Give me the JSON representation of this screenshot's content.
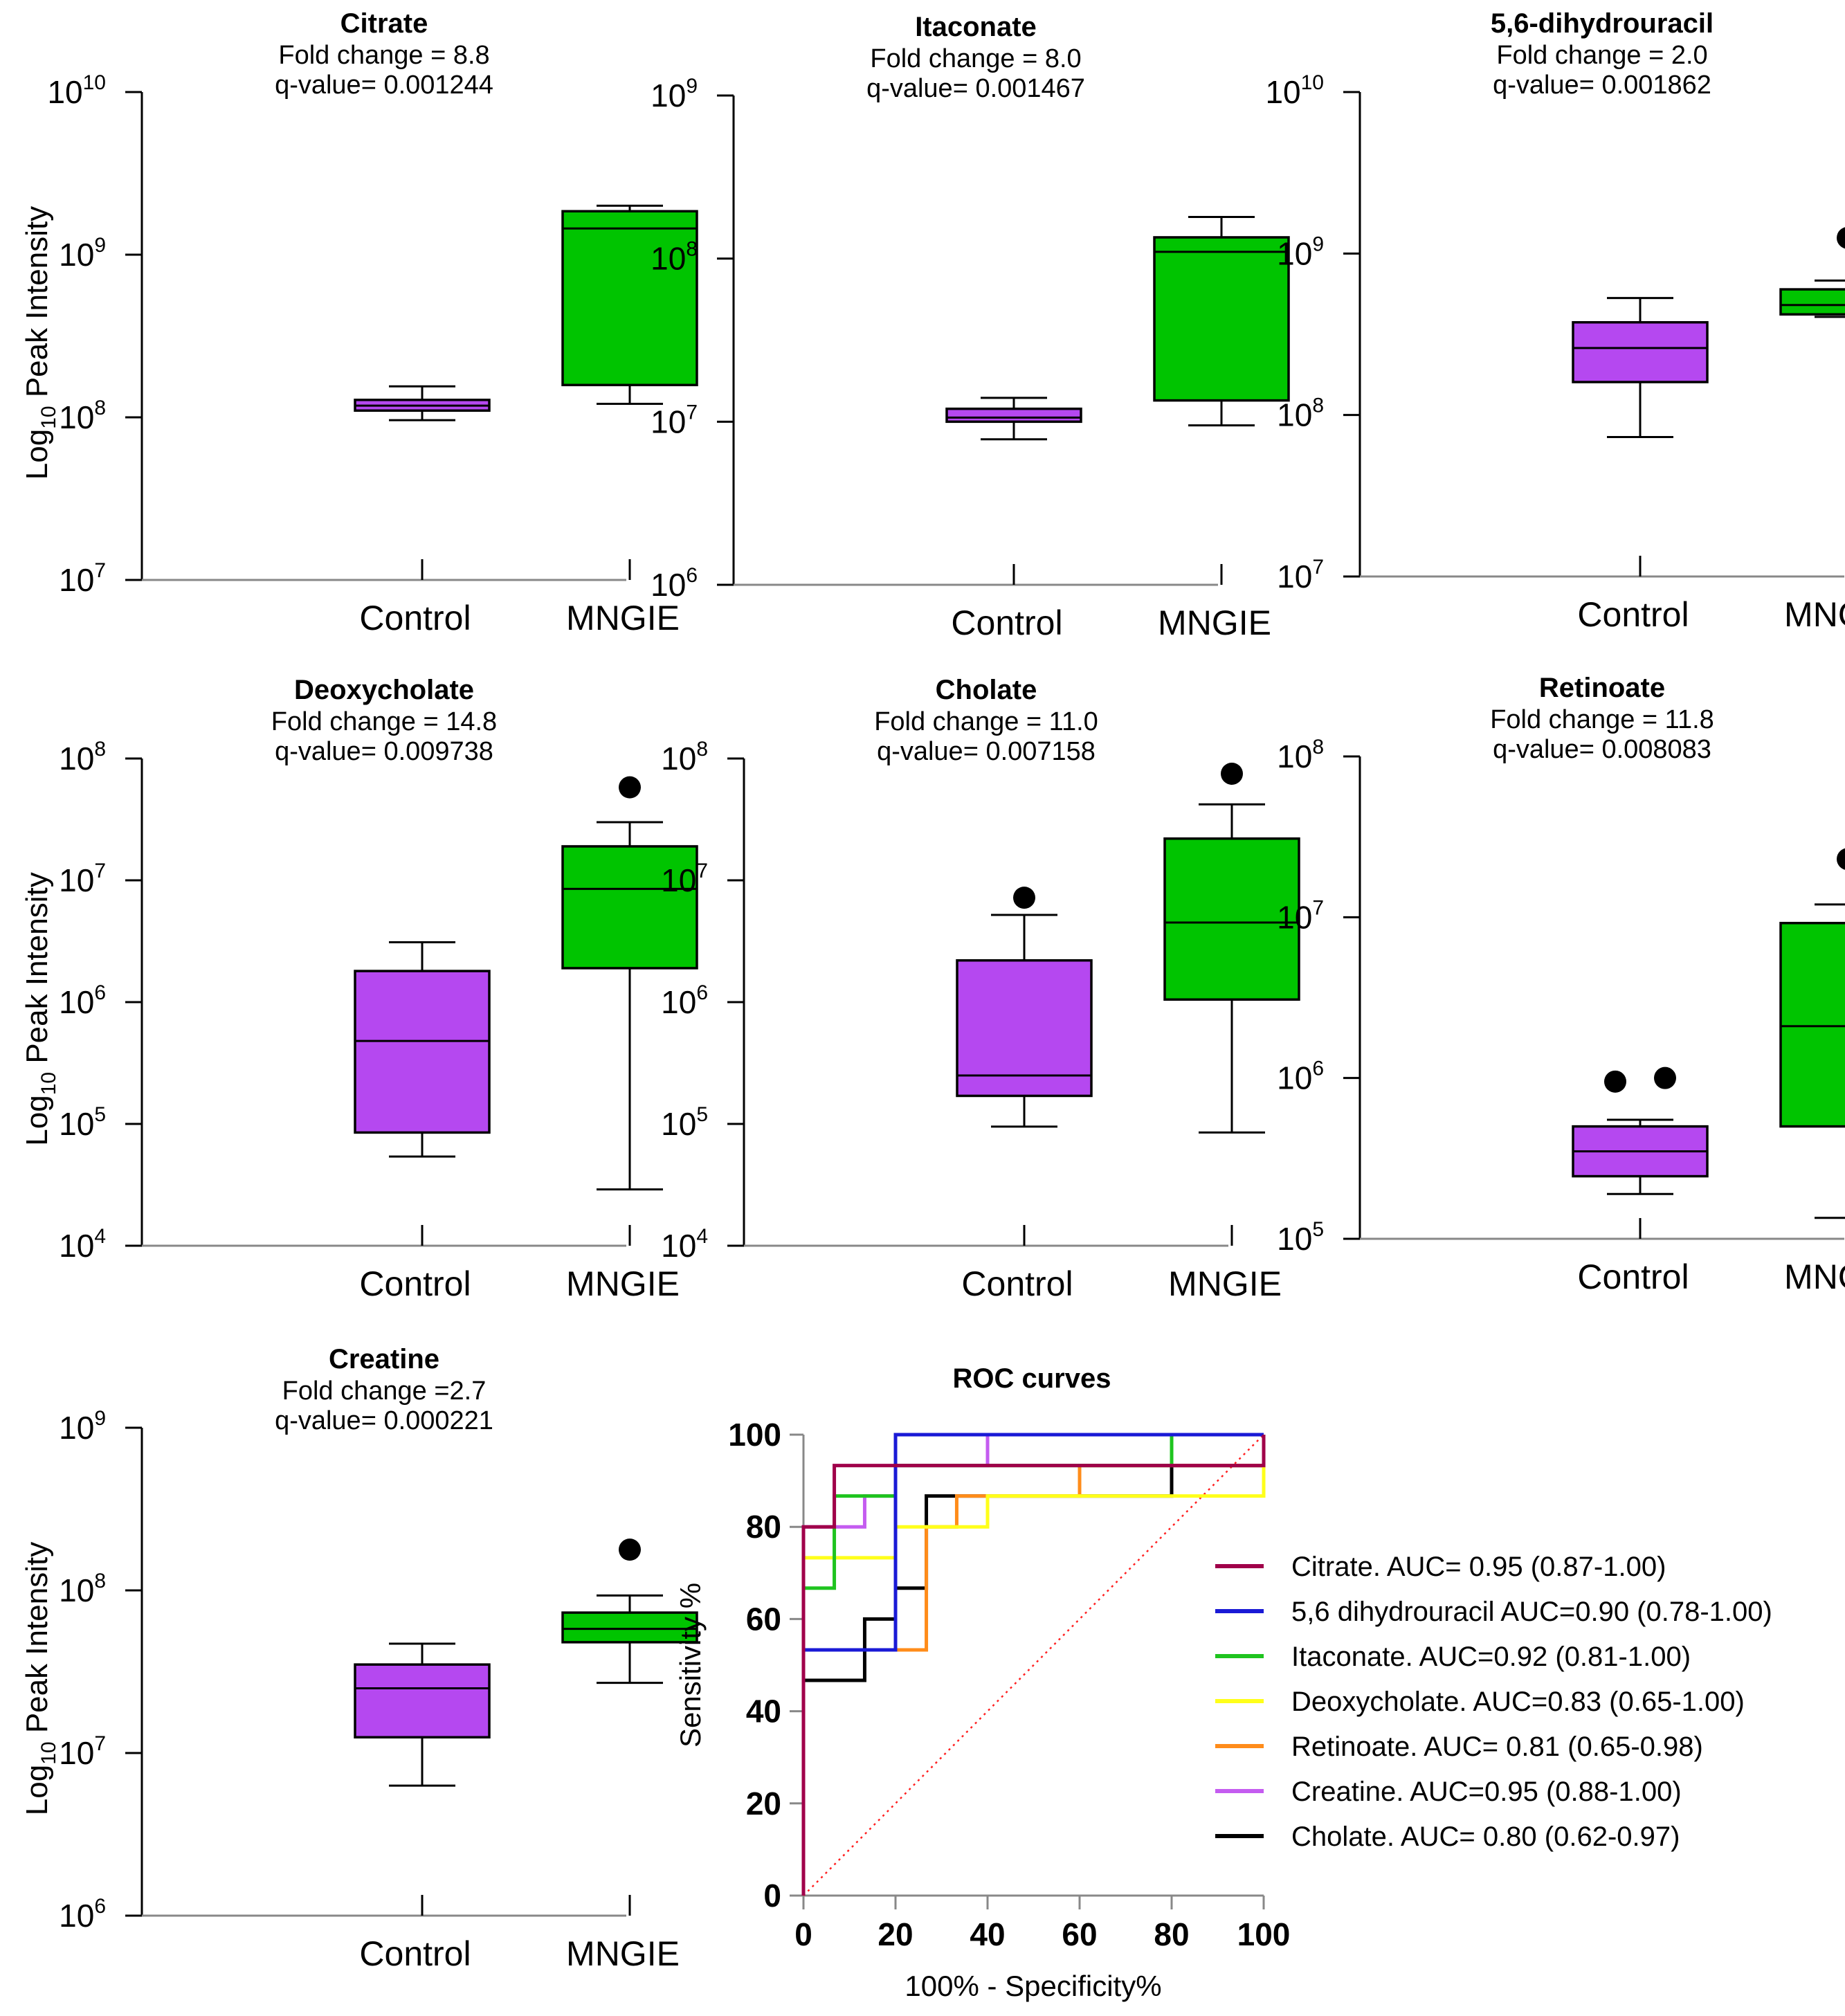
{
  "colors": {
    "control": "#b548f0",
    "mngie": "#00c400",
    "diagonal": "#ff2020"
  },
  "chart_data": [
    {
      "type": "box",
      "title": "Citrate",
      "subtitle1": "Fold change = 8.8",
      "subtitle2": "q-value= 0.001244",
      "ylabel": "Log",
      "ylabel_sub": "10",
      "ylabel_rest": " Peak Intensity",
      "yscale": "log10",
      "ylim_exp": [
        7,
        10
      ],
      "ytick_base": "10",
      "ytick_exps": [
        "7",
        "8",
        "9",
        "10"
      ],
      "groups": [
        {
          "name": "Control",
          "color": "#b548f0",
          "min": 96000000,
          "q1": 110000000,
          "median": 118000000,
          "q3": 128000000,
          "max": 155000000,
          "outliers": []
        },
        {
          "name": "MNGIE",
          "color": "#00c400",
          "min": 121000000,
          "q1": 158000000,
          "median": 1450000000,
          "q3": 1850000000,
          "max": 2000000000,
          "outliers": []
        }
      ]
    },
    {
      "type": "box",
      "title": "Itaconate",
      "subtitle1": "Fold change = 8.0",
      "subtitle2": "q-value= 0.001467",
      "ylabel": "",
      "yscale": "log10",
      "ylim_exp": [
        6,
        9
      ],
      "ytick_base": "10",
      "ytick_exps": [
        "6",
        "7",
        "8",
        "9"
      ],
      "groups": [
        {
          "name": "Control",
          "color": "#b548f0",
          "min": 7800000,
          "q1": 10000000,
          "median": 10600000,
          "q3": 12000000,
          "max": 14000000,
          "outliers": []
        },
        {
          "name": "MNGIE",
          "color": "#00c400",
          "min": 9500000,
          "q1": 13500000,
          "median": 110000000,
          "q3": 135000000,
          "max": 180000000,
          "outliers": []
        }
      ]
    },
    {
      "type": "box",
      "title": "5,6-dihydrouracil",
      "subtitle1": "Fold change = 2.0",
      "subtitle2": "q-value= 0.001862",
      "ylabel": "",
      "yscale": "log10",
      "ylim_exp": [
        7,
        10
      ],
      "ytick_base": "10",
      "ytick_exps": [
        "7",
        "8",
        "9",
        "10"
      ],
      "groups": [
        {
          "name": "Control",
          "color": "#b548f0",
          "min": 73000000,
          "q1": 160000000,
          "median": 260000000,
          "q3": 375000000,
          "max": 530000000,
          "outliers": []
        },
        {
          "name": "MNGIE",
          "color": "#00c400",
          "min": 405000000,
          "q1": 420000000,
          "median": 480000000,
          "q3": 600000000,
          "max": 680000000,
          "outliers": [
            1250000000
          ]
        }
      ]
    },
    {
      "type": "box",
      "title": "Deoxycholate",
      "subtitle1": "Fold change = 14.8",
      "subtitle2": "q-value= 0.009738",
      "ylabel": "Log",
      "ylabel_sub": "10",
      "ylabel_rest": " Peak Intensity",
      "yscale": "log10",
      "ylim_exp": [
        4,
        8
      ],
      "ytick_base": "10",
      "ytick_exps": [
        "4",
        "5",
        "6",
        "7",
        "8"
      ],
      "groups": [
        {
          "name": "Control",
          "color": "#b548f0",
          "min": 54000,
          "q1": 85000,
          "median": 480000,
          "q3": 1800000,
          "max": 3100000,
          "outliers": []
        },
        {
          "name": "MNGIE",
          "color": "#00c400",
          "min": 29000,
          "q1": 1900000,
          "median": 8500000,
          "q3": 19000000,
          "max": 30000000,
          "outliers": [
            58000000
          ]
        }
      ]
    },
    {
      "type": "box",
      "title": "Cholate",
      "subtitle1": "Fold change = 11.0",
      "subtitle2": "q-value= 0.007158",
      "ylabel": "",
      "yscale": "log10",
      "ylim_exp": [
        4,
        8
      ],
      "ytick_base": "10",
      "ytick_exps": [
        "4",
        "5",
        "6",
        "7",
        "8"
      ],
      "groups": [
        {
          "name": "Control",
          "color": "#b548f0",
          "min": 95000,
          "q1": 170000,
          "median": 250000,
          "q3": 2200000,
          "max": 5200000,
          "outliers": [
            7200000
          ]
        },
        {
          "name": "MNGIE",
          "color": "#00c400",
          "min": 85000,
          "q1": 1050000,
          "median": 4500000,
          "q3": 22000000,
          "max": 42000000,
          "outliers": [
            75000000
          ]
        }
      ]
    },
    {
      "type": "box",
      "title": "Retinoate",
      "subtitle1": "Fold change = 11.8",
      "subtitle2": "q-value= 0.008083",
      "ylabel": "",
      "yscale": "log10",
      "ylim_exp": [
        5,
        8
      ],
      "ytick_base": "10",
      "ytick_exps": [
        "5",
        "6",
        "7",
        "8"
      ],
      "groups": [
        {
          "name": "Control",
          "color": "#b548f0",
          "min": 190000,
          "q1": 245000,
          "median": 350000,
          "q3": 500000,
          "max": 550000,
          "outliers": [
            950000,
            1000000
          ]
        },
        {
          "name": "MNGIE",
          "color": "#00c400",
          "min": 135000,
          "q1": 500000,
          "median": 2100000,
          "q3": 9200000,
          "max": 12000000,
          "outliers": [
            23000000
          ]
        }
      ]
    },
    {
      "type": "box",
      "title": "Creatine",
      "subtitle1": "Fold change =2.7",
      "subtitle2": "q-value= 0.000221",
      "ylabel": "Log",
      "ylabel_sub": "10",
      "ylabel_rest": " Peak Intensity",
      "yscale": "log10",
      "ylim_exp": [
        6,
        9
      ],
      "ytick_base": "10",
      "ytick_exps": [
        "6",
        "7",
        "8",
        "9"
      ],
      "groups": [
        {
          "name": "Control",
          "color": "#b548f0",
          "min": 6300000,
          "q1": 12500000,
          "median": 25000000,
          "q3": 35000000,
          "max": 47000000,
          "outliers": []
        },
        {
          "name": "MNGIE",
          "color": "#00c400",
          "min": 27000000,
          "q1": 48000000,
          "median": 58000000,
          "q3": 73000000,
          "max": 93000000,
          "outliers": [
            178000000
          ]
        }
      ]
    },
    {
      "type": "line",
      "title": "ROC curves",
      "xlabel": "100% - Specificity%",
      "ylabel": "Sensitivity %",
      "xlim": [
        0,
        100
      ],
      "ylim": [
        0,
        100
      ],
      "ticks": [
        "0",
        "20",
        "40",
        "60",
        "80",
        "100"
      ],
      "reference_line": {
        "x": [
          0,
          100
        ],
        "y": [
          0,
          100
        ],
        "style": "dotted"
      },
      "series": [
        {
          "name": "Citrate. AUC= 0.95 (0.87-1.00)",
          "color": "#a0004a",
          "x": [
            0,
            0,
            6.7,
            6.7,
            100,
            100
          ],
          "y": [
            0,
            80,
            80,
            93.3,
            93.3,
            100
          ]
        },
        {
          "name": "5,6 dihydrouracil AUC=0.90 (0.78-1.00)",
          "color": "#1a1ad6",
          "x": [
            0,
            0,
            20,
            20,
            100
          ],
          "y": [
            0,
            53.3,
            53.3,
            100,
            100
          ]
        },
        {
          "name": "Itaconate. AUC=0.92 (0.81-1.00)",
          "color": "#1fc41f",
          "x": [
            0,
            0,
            6.7,
            6.7,
            13.3,
            13.3,
            20,
            20,
            40,
            40,
            80,
            80,
            100
          ],
          "y": [
            0,
            66.7,
            66.7,
            86.7,
            86.7,
            86.7,
            86.7,
            93.3,
            93.3,
            93.3,
            93.3,
            100,
            100
          ]
        },
        {
          "name": "Deoxycholate. AUC=0.83 (0.65-1.00)",
          "color": "#ffff1a",
          "x": [
            0,
            0,
            20,
            20,
            40,
            40,
            86.7,
            86.7,
            100,
            100
          ],
          "y": [
            0,
            73.3,
            73.3,
            80,
            80,
            86.7,
            86.7,
            86.7,
            86.7,
            100
          ]
        },
        {
          "name": "Retinoate. AUC= 0.81 (0.65-0.98)",
          "color": "#ff8c1a",
          "x": [
            0,
            0,
            13.3,
            13.3,
            26.7,
            26.7,
            33.3,
            33.3,
            60,
            60,
            100,
            100
          ],
          "y": [
            0,
            53.3,
            53.3,
            53.3,
            53.3,
            80,
            80,
            86.7,
            86.7,
            93.3,
            93.3,
            100
          ]
        },
        {
          "name": "Creatine. AUC=0.95 (0.88-1.00)",
          "color": "#c45cf0",
          "x": [
            0,
            0,
            13.3,
            13.3,
            20,
            20,
            40,
            40,
            100
          ],
          "y": [
            0,
            80,
            80,
            86.7,
            86.7,
            93.3,
            93.3,
            100,
            100
          ]
        },
        {
          "name": "Cholate. AUC= 0.80 (0.62-0.97)",
          "color": "#000000",
          "x": [
            0,
            0,
            13.3,
            13.3,
            20,
            20,
            26.7,
            26.7,
            80,
            80,
            100,
            100
          ],
          "y": [
            0,
            46.7,
            46.7,
            60,
            60,
            66.7,
            66.7,
            86.7,
            86.7,
            93.3,
            93.3,
            100
          ]
        }
      ]
    }
  ]
}
